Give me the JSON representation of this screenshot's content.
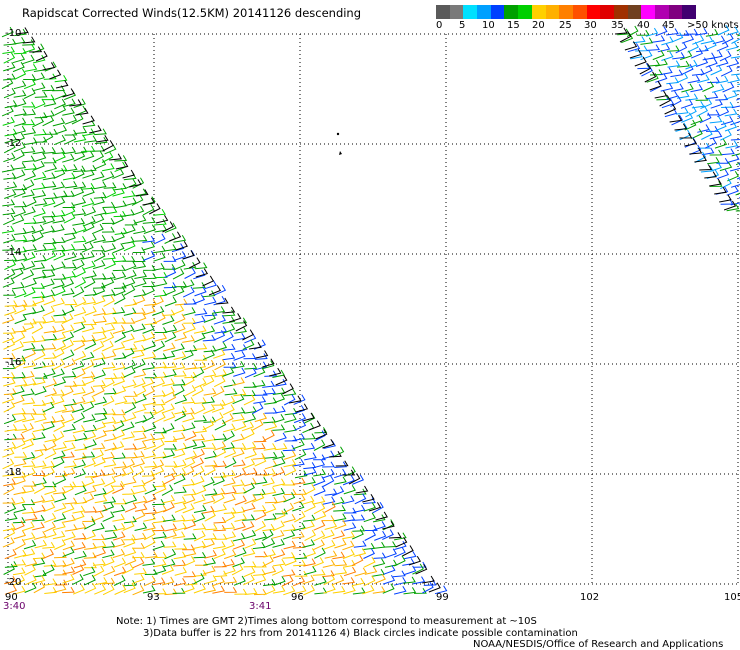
{
  "header": {
    "title": "Rapidscat Corrected Winds(12.5KM) 20141126 descending"
  },
  "colorbar": {
    "colors": [
      "#5a5a5a",
      "#7a7a7a",
      "#00e0ff",
      "#00a0ff",
      "#0040ff",
      "#00a000",
      "#00d000",
      "#ffd000",
      "#ffb000",
      "#ff8000",
      "#ff5000",
      "#ff0000",
      "#e00000",
      "#a03000",
      "#704020",
      "#ff00ff",
      "#b000b0",
      "#800080",
      "#400070"
    ],
    "labels": [
      "0",
      "5",
      "10",
      "15",
      "20",
      "25",
      "30",
      "35",
      "40",
      "45",
      ">50 knots"
    ]
  },
  "map": {
    "y_labels": [
      "-10",
      "-12",
      "-14",
      "-16",
      "-18",
      "-20"
    ],
    "x_labels": [
      "90",
      "93",
      "96",
      "99",
      "102",
      "105"
    ],
    "time_labels": [
      "3:40",
      "3:41"
    ],
    "lat_range": [
      -20,
      -10
    ],
    "lon_range": [
      90,
      105
    ],
    "gridlines": "dotted"
  },
  "footer": {
    "note1": "Note: 1) Times are GMT 2)Times along bottom correspond to measurement at ~10S",
    "note2": "3)Data buffer is 22 hrs from 20141126 4) Black circles indicate possible contamination",
    "credit": "NOAA/NESDIS/Office of Research and Applications"
  }
}
